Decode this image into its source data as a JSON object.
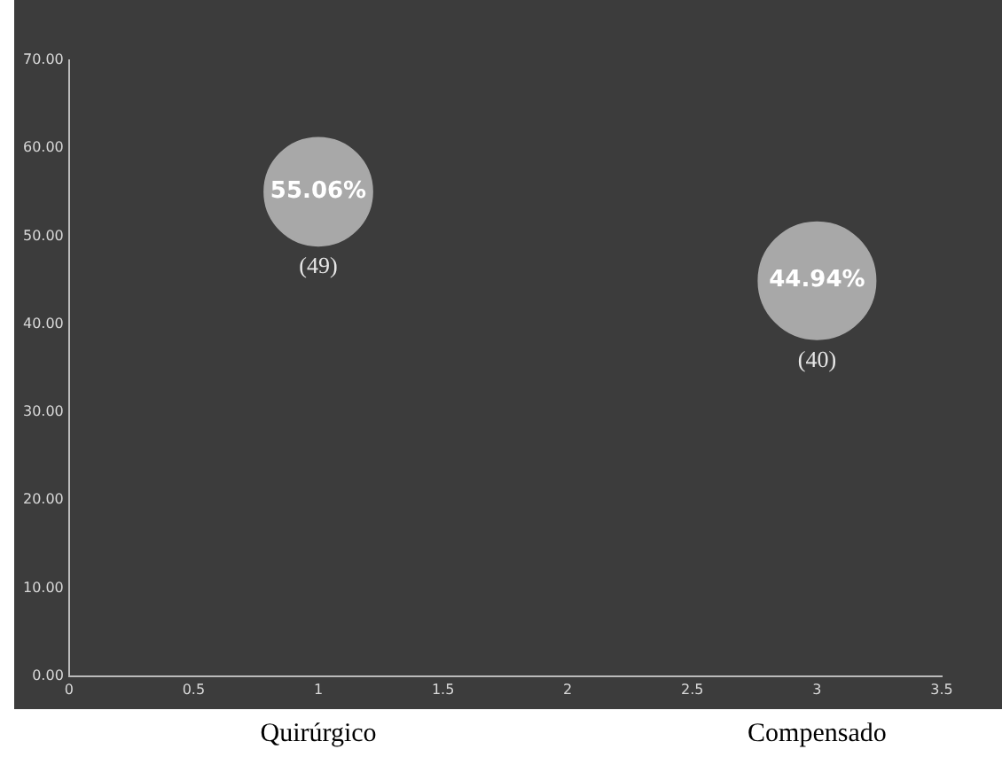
{
  "chart_data": {
    "type": "bubble",
    "x": [
      1,
      3
    ],
    "values": [
      55.06,
      44.94
    ],
    "sizes": [
      0.85,
      1
    ],
    "color": "#a8a8a8",
    "value_labels": [
      "55.06%",
      "44.94%"
    ],
    "xlim": [
      0,
      3.5
    ],
    "xticks": [
      0,
      0.5,
      1,
      1.5,
      2,
      2.5,
      3,
      3.5
    ],
    "ylim": [
      0,
      70
    ],
    "yticks": [
      {
        "value": 0,
        "label": "0.00"
      },
      {
        "value": 10,
        "label": "10.00"
      },
      {
        "value": 20,
        "label": "20.00"
      },
      {
        "value": 30,
        "label": "30.00"
      },
      {
        "value": 40,
        "label": "40.00"
      },
      {
        "value": 50,
        "label": "50.00"
      },
      {
        "value": 60,
        "label": "60.00"
      },
      {
        "value": 70,
        "label": "70.00"
      }
    ],
    "annotations": [
      "(49)",
      "(40)",
      "Quirúrgico",
      "Compensado"
    ],
    "grid": false,
    "legend": false
  }
}
